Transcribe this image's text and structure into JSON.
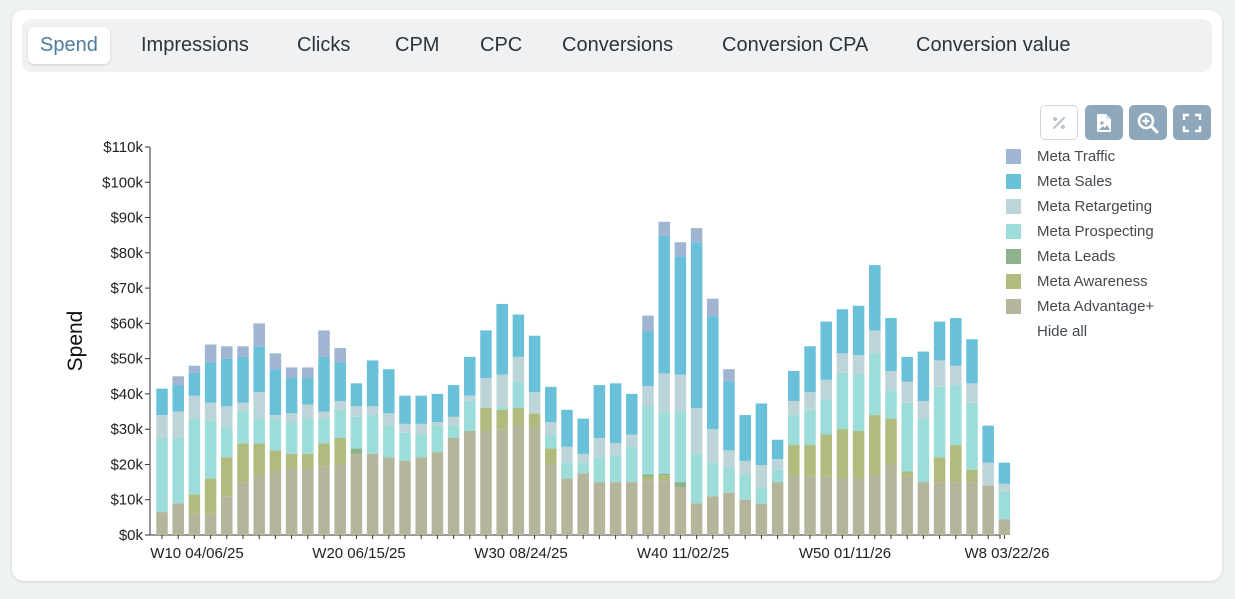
{
  "tabs": [
    {
      "label": "Spend",
      "active": true
    },
    {
      "label": "Impressions",
      "active": false
    },
    {
      "label": "Clicks",
      "active": false
    },
    {
      "label": "CPM",
      "active": false
    },
    {
      "label": "CPC",
      "active": false
    },
    {
      "label": "Conversions",
      "active": false
    },
    {
      "label": "Conversion CPA",
      "active": false
    },
    {
      "label": "Conversion value",
      "active": false
    }
  ],
  "toolbar": {
    "icons": [
      "percent-icon",
      "export-image-icon",
      "zoom-in-icon",
      "fullscreen-icon"
    ]
  },
  "legend": {
    "hide_all_label": "Hide all"
  },
  "chart_data": {
    "type": "bar",
    "stacked": true,
    "ylabel": "Spend",
    "xlabel": "",
    "ylim": [
      0,
      110000
    ],
    "y_ticks": [
      "$0k",
      "$10k",
      "$20k",
      "$30k",
      "$40k",
      "$50k",
      "$60k",
      "$70k",
      "$80k",
      "$90k",
      "$100k",
      "$110k"
    ],
    "x_tick_labels": [
      {
        "index": 0,
        "label": "W10 04/06/25"
      },
      {
        "index": 10,
        "label": "W20 06/15/25"
      },
      {
        "index": 20,
        "label": "W30 08/24/25"
      },
      {
        "index": 30,
        "label": "W40 11/02/25"
      },
      {
        "index": 40,
        "label": "W50 01/11/26"
      },
      {
        "index": 50,
        "label": "W8 03/22/26"
      }
    ],
    "grid": false,
    "legend_position": "right",
    "series": [
      {
        "name": "Meta Advantage+",
        "color": "#b5b59b",
        "values": [
          6500,
          9000,
          6000,
          6000,
          11000,
          15000,
          17000,
          18000,
          19000,
          19000,
          19500,
          20000,
          23000,
          23000,
          22000,
          21000,
          22000,
          23500,
          27500,
          29500,
          29500,
          30000,
          31000,
          30500,
          20000,
          16000,
          17500,
          15000,
          15000,
          15000,
          15500,
          15500,
          13500,
          9000,
          11000,
          12000,
          10000,
          8800,
          15000,
          17000,
          16500,
          16500,
          16000,
          16000,
          17000,
          20000,
          16500,
          15000,
          15000,
          15000,
          15000,
          14000,
          4500
        ]
      },
      {
        "name": "Meta Awareness",
        "color": "#b1bb7d",
        "values": [
          0,
          0,
          5500,
          10000,
          11000,
          11000,
          9000,
          6000,
          4000,
          4000,
          6500,
          7500,
          0,
          0,
          0,
          0,
          0,
          0,
          0,
          0,
          6500,
          5500,
          5000,
          4000,
          4500,
          0,
          0,
          0,
          0,
          0,
          1000,
          1500,
          0,
          0,
          0,
          0,
          0,
          0,
          0,
          8500,
          9000,
          12000,
          14000,
          13500,
          17000,
          13000,
          1500,
          0,
          7000,
          10500,
          3500,
          0,
          0
        ]
      },
      {
        "name": "Meta Leads",
        "color": "#8db28c",
        "values": [
          0,
          0,
          0,
          0,
          0,
          0,
          0,
          0,
          0,
          0,
          0,
          0,
          1500,
          0,
          0,
          0,
          0,
          0,
          0,
          0,
          0,
          0,
          0,
          0,
          0,
          0,
          0,
          0,
          0,
          0,
          700,
          300,
          1500,
          0,
          0,
          0,
          0,
          0,
          0,
          0,
          0,
          0,
          0,
          0,
          0,
          0,
          0,
          0,
          0,
          0,
          0,
          0,
          0
        ]
      },
      {
        "name": "Meta Prospecting",
        "color": "#9cdcd9",
        "values": [
          21000,
          18500,
          21500,
          16500,
          8500,
          9000,
          7000,
          9000,
          9000,
          10000,
          7000,
          8000,
          9000,
          11000,
          9000,
          8000,
          6500,
          7500,
          3500,
          8500,
          0,
          1000,
          7500,
          0,
          4000,
          4500,
          3000,
          7000,
          7500,
          10000,
          19500,
          17500,
          20000,
          14000,
          9500,
          7000,
          7000,
          4500,
          3500,
          8500,
          10000,
          10000,
          16000,
          16000,
          17500,
          8000,
          19500,
          18000,
          20000,
          17000,
          19000,
          0,
          8000
        ]
      },
      {
        "name": "Meta Retargeting",
        "color": "#bdd5d9",
        "values": [
          6500,
          7500,
          6500,
          5000,
          6000,
          2500,
          7500,
          1000,
          2500,
          4000,
          2000,
          2500,
          3000,
          2500,
          3500,
          2500,
          3000,
          1000,
          2500,
          1500,
          8500,
          9000,
          7000,
          6000,
          3500,
          4500,
          2500,
          5500,
          3500,
          3500,
          5500,
          11000,
          10500,
          13000,
          9500,
          5000,
          4000,
          6500,
          3000,
          4000,
          5000,
          5500,
          5500,
          5500,
          6500,
          5500,
          6000,
          5000,
          7500,
          5500,
          5500,
          6500,
          2000
        ]
      },
      {
        "name": "Meta Sales",
        "color": "#68c0d9",
        "values": [
          7500,
          7500,
          6500,
          11500,
          13500,
          13000,
          13000,
          13000,
          10000,
          7500,
          15500,
          11000,
          6500,
          13000,
          12500,
          8000,
          8000,
          8000,
          9000,
          11000,
          13500,
          20000,
          12000,
          16000,
          10000,
          10500,
          10000,
          15000,
          17000,
          11500,
          15500,
          39000,
          33500,
          47000,
          32000,
          19500,
          13000,
          17500,
          5500,
          8500,
          13000,
          16500,
          12500,
          14000,
          18500,
          15000,
          7000,
          14000,
          11000,
          13500,
          12500,
          10500,
          6000
        ]
      },
      {
        "name": "Meta Traffic",
        "color": "#9fb5d2",
        "values": [
          0,
          2500,
          2000,
          5000,
          3500,
          3000,
          6500,
          4500,
          3000,
          3000,
          7500,
          4000,
          0,
          0,
          0,
          0,
          0,
          0,
          0,
          0,
          0,
          0,
          0,
          0,
          0,
          0,
          0,
          0,
          0,
          0,
          4500,
          4000,
          4000,
          4000,
          5000,
          3500,
          0,
          0,
          0,
          0,
          0,
          0,
          0,
          0,
          0,
          0,
          0,
          0,
          0,
          0,
          0,
          0,
          0
        ]
      }
    ]
  }
}
